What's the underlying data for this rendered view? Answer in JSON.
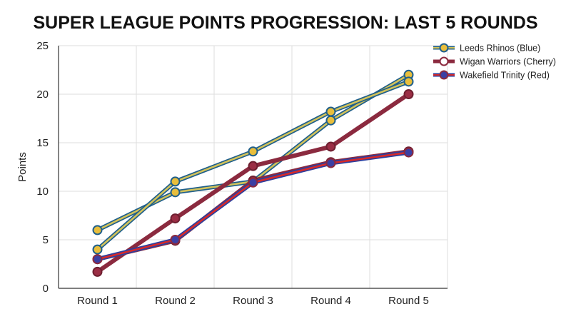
{
  "chart_data": {
    "type": "line",
    "title": "SUPER LEAGUE POINTS PROGRESSION: LAST 5 ROUNDS",
    "xlabel": "",
    "ylabel": "Points",
    "categories": [
      "Round 1",
      "Round 2",
      "Round 3",
      "Round 4",
      "Round 5"
    ],
    "ylim": [
      0,
      25
    ],
    "yticks": [
      0,
      5,
      10,
      15,
      20,
      25
    ],
    "grid": true,
    "legend_position": "top-right",
    "series": [
      {
        "name": "Leeds Rhinos (Blue)",
        "lines": [
          [
            6.0,
            9.9,
            11.0,
            17.3,
            22.0
          ],
          [
            4.0,
            11.0,
            14.1,
            18.2,
            21.3
          ]
        ],
        "line_color": "#d2c25a",
        "outline_color": "#1f5f8b",
        "marker_fill": "#e8be3c",
        "marker_edge": "#1f5f8b"
      },
      {
        "name": "Wigan Warriors (Cherry)",
        "lines": [
          [
            1.7,
            7.2,
            12.6,
            14.6,
            20.0
          ],
          [
            3.0,
            4.9,
            11.1,
            13.0,
            14.1
          ]
        ],
        "line_color": "#8b2a3f",
        "outline_color": "#8b2a3f",
        "marker_fill": "#9b2e45",
        "marker_edge": "#6e1f30",
        "open_marker_legend": true
      },
      {
        "name": "Wakefield Trinity (Red)",
        "lines": [
          [
            3.0,
            5.0,
            10.9,
            12.9,
            14.0
          ]
        ],
        "line_color": "#d62a2a",
        "outline_color": "#2d3f9e",
        "marker_fill": "#3b3fa3",
        "marker_edge": "#8b2a3f"
      }
    ]
  }
}
